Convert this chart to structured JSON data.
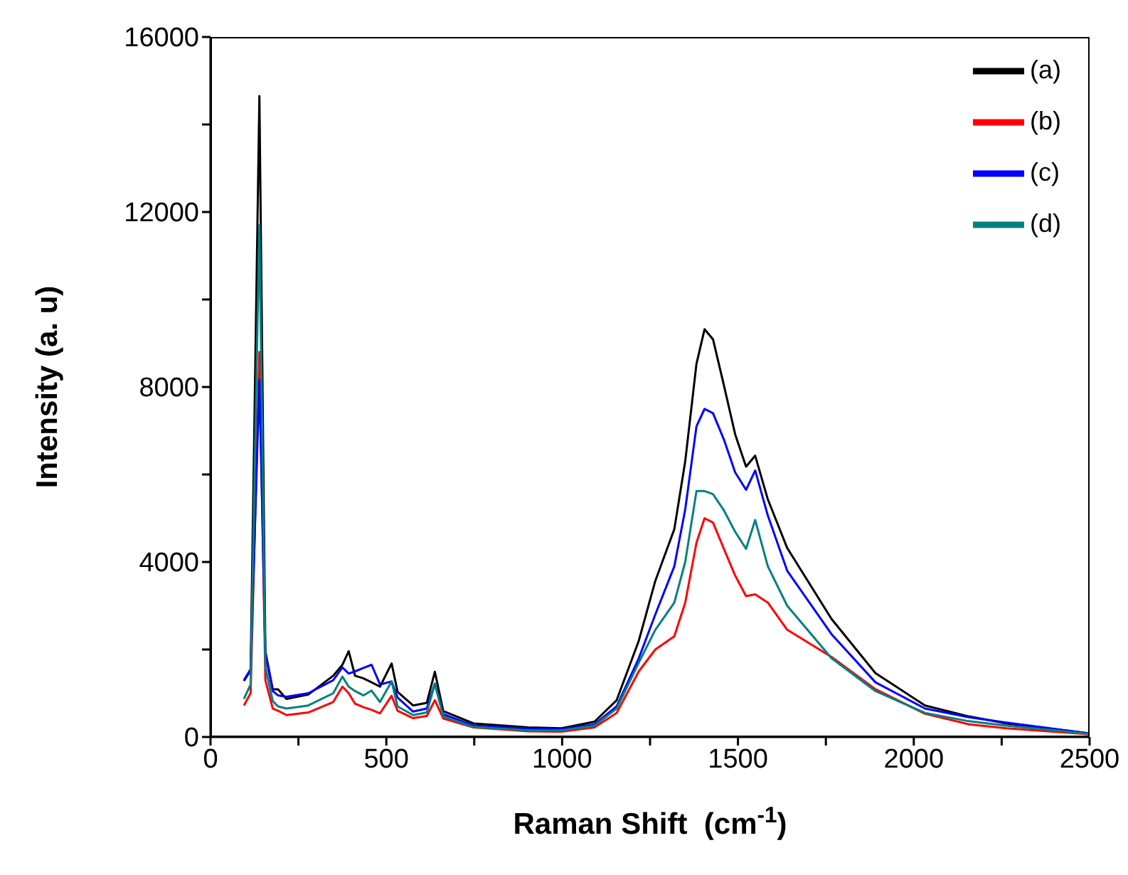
{
  "chart_data": {
    "type": "line",
    "xlabel": "Raman Shift  (cm$^{-1}$)",
    "ylabel": "Intensity (a. u)",
    "x": [
      95,
      114,
      139,
      156,
      177,
      192,
      216,
      278,
      349,
      375,
      393,
      411,
      435,
      458,
      482,
      515,
      532,
      576,
      615,
      638,
      662,
      748,
      904,
      998,
      1092,
      1155,
      1218,
      1265,
      1319,
      1350,
      1382,
      1405,
      1429,
      1460,
      1492,
      1523,
      1549,
      1585,
      1640,
      1766,
      1891,
      2032,
      2157,
      2263,
      2500
    ],
    "series": [
      {
        "name": "(a)",
        "color": "#000000",
        "values": [
          1280,
          1520,
          14650,
          1960,
          1090,
          1090,
          870,
          970,
          1400,
          1650,
          1960,
          1400,
          1340,
          1250,
          1150,
          1680,
          1030,
          720,
          780,
          1490,
          590,
          310,
          220,
          200,
          350,
          840,
          2200,
          3570,
          4750,
          6300,
          8530,
          9320,
          9090,
          8040,
          6920,
          6180,
          6430,
          5430,
          4320,
          2700,
          1460,
          720,
          470,
          310,
          80
        ]
      },
      {
        "name": "(b)",
        "color": "#ff0000",
        "values": [
          720,
          1000,
          8800,
          1300,
          650,
          600,
          500,
          560,
          800,
          1150,
          1000,
          760,
          680,
          620,
          540,
          940,
          600,
          430,
          480,
          840,
          420,
          220,
          130,
          120,
          220,
          550,
          1500,
          2000,
          2300,
          3070,
          4440,
          5000,
          4900,
          4300,
          3690,
          3220,
          3260,
          3070,
          2450,
          1830,
          1090,
          530,
          290,
          200,
          60
        ]
      },
      {
        "name": "(c)",
        "color": "#0000ff",
        "values": [
          1300,
          1550,
          8160,
          1900,
          1050,
          950,
          920,
          1000,
          1300,
          1590,
          1450,
          1500,
          1580,
          1650,
          1200,
          1270,
          900,
          580,
          650,
          1220,
          520,
          260,
          190,
          180,
          290,
          700,
          1800,
          2800,
          3900,
          5200,
          7100,
          7500,
          7400,
          6800,
          6050,
          5650,
          6090,
          5060,
          3800,
          2350,
          1250,
          650,
          450,
          330,
          80
        ]
      },
      {
        "name": "(d)",
        "color": "#008080",
        "values": [
          870,
          1200,
          11700,
          1600,
          820,
          700,
          650,
          720,
          1000,
          1380,
          1150,
          1050,
          950,
          1060,
          800,
          1270,
          700,
          500,
          560,
          1210,
          470,
          230,
          150,
          150,
          260,
          650,
          1700,
          2450,
          3070,
          4000,
          5620,
          5620,
          5550,
          5180,
          4690,
          4300,
          4960,
          3900,
          3000,
          1800,
          1050,
          550,
          360,
          260,
          70
        ]
      }
    ],
    "xlim": [
      0,
      2500
    ],
    "xticks": [
      0,
      {
        "value": 250,
        "label": null
      },
      500,
      {
        "value": 750,
        "label": null
      },
      1000,
      {
        "value": 1250,
        "label": null
      },
      1500,
      {
        "value": 1750,
        "label": null
      },
      2000,
      {
        "value": 2250,
        "label": null
      },
      2500
    ],
    "ylim": [
      0,
      16000
    ],
    "yticks": [
      0,
      {
        "value": 2000,
        "label": null
      },
      4000,
      {
        "value": 6000,
        "label": null
      },
      8000,
      {
        "value": 10000,
        "label": null
      },
      12000,
      {
        "value": 14000,
        "label": null
      },
      16000
    ],
    "grid": false,
    "legend": "top right",
    "marker": "none",
    "line_style": "solid"
  }
}
